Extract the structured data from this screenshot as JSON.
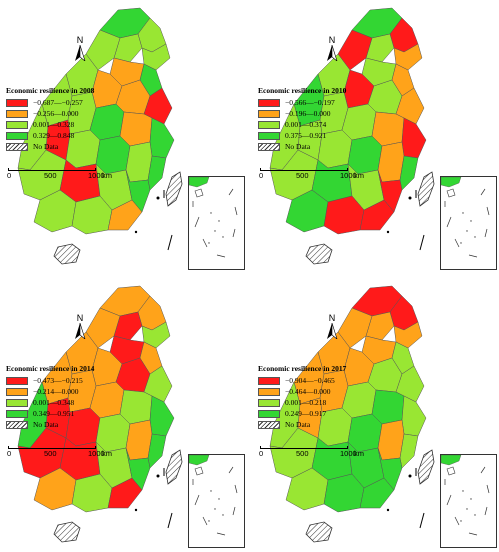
{
  "panels": [
    {
      "title": "Economic resilience in 2008",
      "classes": [
        {
          "label": "−0.687—−0.257",
          "color": "#ff1a1a"
        },
        {
          "label": "−0.256—0.000",
          "color": "#ffa31a"
        },
        {
          "label": "0.001—0.328",
          "color": "#99e633"
        },
        {
          "label": "0.329—0.848",
          "color": "#33d633"
        }
      ],
      "no_data": "No Data",
      "north": "N",
      "scale": {
        "ticks": [
          "0",
          "500",
          "1000"
        ],
        "unit": "km"
      }
    },
    {
      "title": "Economic resilience in 2010",
      "classes": [
        {
          "label": "−0.566—−0.197",
          "color": "#ff1a1a"
        },
        {
          "label": "−0.196—0.000",
          "color": "#ffa31a"
        },
        {
          "label": "0.001—0.374",
          "color": "#99e633"
        },
        {
          "label": "0.375—0.921",
          "color": "#33d633"
        }
      ],
      "no_data": "No Data",
      "north": "N",
      "scale": {
        "ticks": [
          "0",
          "500",
          "1000"
        ],
        "unit": "km"
      }
    },
    {
      "title": "Economic resilience in 2014",
      "classes": [
        {
          "label": "−0.473—−0.215",
          "color": "#ff1a1a"
        },
        {
          "label": "−0.214—0.000",
          "color": "#ffa31a"
        },
        {
          "label": "0.001—0.348",
          "color": "#99e633"
        },
        {
          "label": "0.349—0.951",
          "color": "#33d633"
        }
      ],
      "no_data": "No Data",
      "north": "N",
      "scale": {
        "ticks": [
          "0",
          "500",
          "1000"
        ],
        "unit": "km"
      }
    },
    {
      "title": "Economic resilience in 2017",
      "classes": [
        {
          "label": "−0.904—−0.465",
          "color": "#ff1a1a"
        },
        {
          "label": "−0.464—0.000",
          "color": "#ffa31a"
        },
        {
          "label": "0.001—0.218",
          "color": "#99e633"
        },
        {
          "label": "0.249—0.917",
          "color": "#33d633"
        }
      ],
      "no_data": "No Data",
      "north": "N",
      "scale": {
        "ticks": [
          "0",
          "500",
          "1000"
        ],
        "unit": "km"
      }
    }
  ]
}
